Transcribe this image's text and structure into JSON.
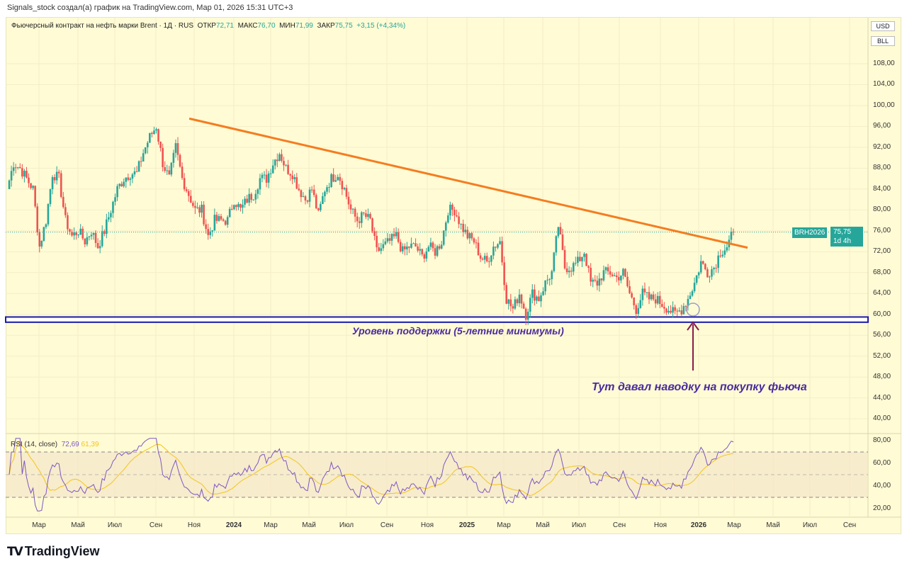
{
  "credit": "Signals_stock создал(а) график на TradingView.com, Мар 01, 2026 15:31 UTC+3",
  "legend": {
    "title": "Фьючерсный контракт на нефть марки Brent · 1Д · RUS",
    "open_label": "ОТКР",
    "open": "72,71",
    "high_label": "МАКС",
    "high": "76,70",
    "low_label": "МИН",
    "low": "71,99",
    "close_label": "ЗАКР",
    "close": "75,75",
    "change": "+3,15 (+4,34%)"
  },
  "axis_buttons": {
    "currency": "USD",
    "unit": "BLL"
  },
  "price_tag": {
    "symbol": "BRH2026",
    "price": "75,75",
    "countdown": "1d 4h"
  },
  "rsi": {
    "label": "RSI (14, close)",
    "value": "72,69",
    "ma": "61,39"
  },
  "annotations": {
    "support": "Уровень поддержки (5-летние минимумы)",
    "entry": "Тут давал наводку на покупку фьюча"
  },
  "logo": "TradingView",
  "colors": {
    "up": "#26a69a",
    "down": "#ef5350",
    "trend": "#f57c20",
    "support": "#1a1aa8",
    "rsi": "#7e57c2",
    "rsi_ma": "#f5c518"
  },
  "chart_data": {
    "type": "candlestick",
    "price_ticks": [
      "108,00",
      "104,00",
      "100,00",
      "96,00",
      "92,00",
      "88,00",
      "84,00",
      "80,00",
      "76,00",
      "72,00",
      "68,00",
      "64,00",
      "60,00",
      "56,00",
      "52,00",
      "48,00",
      "44,00",
      "40,00"
    ],
    "ylim": [
      40,
      108
    ],
    "rsi_ticks": [
      "80,00",
      "60,00",
      "40,00",
      "20,00"
    ],
    "rsi_levels": [
      70,
      50,
      30
    ],
    "time_labels": [
      "Мар",
      "Май",
      "Июл",
      "Сен",
      "Ноя",
      "2024",
      "Мар",
      "Май",
      "Июл",
      "Сен",
      "Ноя",
      "2025",
      "Мар",
      "Май",
      "Июл",
      "Сен",
      "Ноя",
      "2026",
      "Мар",
      "Май",
      "Июл",
      "Сен"
    ],
    "closes": [
      84,
      89,
      88,
      86,
      84,
      73,
      78,
      87,
      86,
      78,
      75,
      76,
      74,
      76,
      73,
      76,
      80,
      84,
      86,
      87,
      87,
      91,
      94,
      96,
      89,
      86,
      92,
      86,
      83,
      80,
      80,
      75,
      78,
      78,
      78,
      82,
      80,
      82,
      83,
      86,
      86,
      89,
      91,
      88,
      87,
      84,
      82,
      84,
      79,
      84,
      86,
      87,
      84,
      80,
      78,
      79,
      78,
      72,
      73,
      74,
      75,
      72,
      73,
      73,
      71,
      73,
      72,
      74,
      80,
      80,
      77,
      75,
      74,
      71,
      70,
      73,
      74,
      63,
      61,
      64,
      60,
      64,
      63,
      66,
      68,
      77,
      69,
      69,
      70,
      72,
      66,
      66,
      68,
      68,
      67,
      68,
      64,
      61,
      64,
      63,
      63,
      62,
      61,
      60,
      61,
      63,
      66,
      70,
      68,
      69,
      72,
      73,
      75.75
    ],
    "current_price": 75.75,
    "trendline": {
      "start_index": 27,
      "start_price": 97.5,
      "end_index": 121,
      "end_price": 70.5
    },
    "support_zone": [
      58.5,
      59.5
    ]
  }
}
